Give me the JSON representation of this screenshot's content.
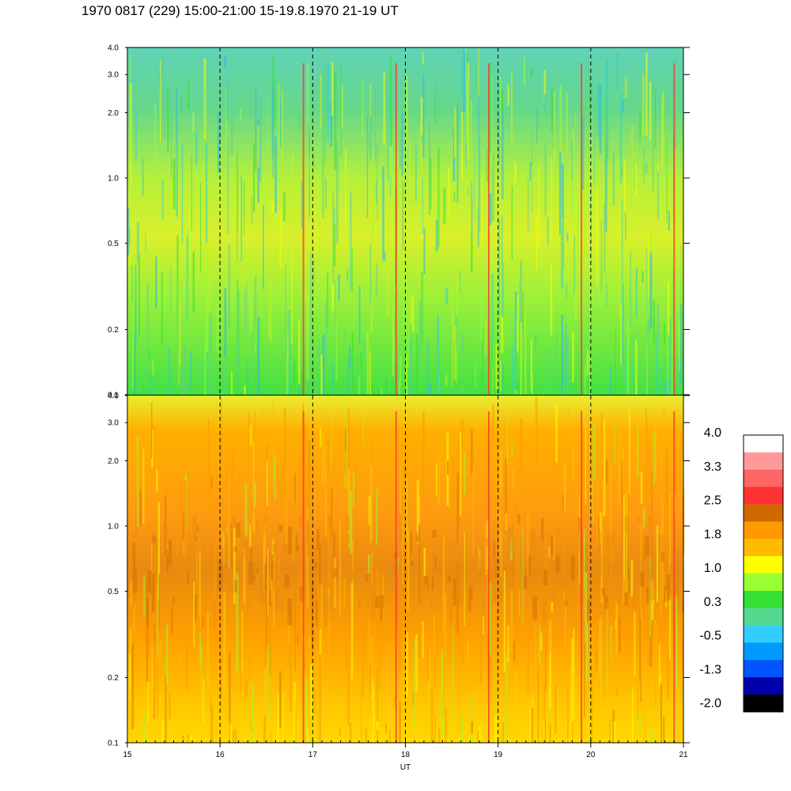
{
  "title": "1970 0817 (229) 15:00-21:00 15-19.8.1970  21-19 UT",
  "chart_data": [
    {
      "type": "heatmap",
      "panel": "top",
      "x_range": [
        15,
        21
      ],
      "y_scale": "log",
      "y_range": [
        0.1,
        4.0
      ],
      "y_ticks": [
        "0.1",
        "0.2",
        "0.5",
        "1.0",
        "2.0",
        "3.0",
        "4.0"
      ],
      "y_tick_values": [
        0.1,
        0.2,
        0.5,
        1.0,
        2.0,
        3.0,
        4.0
      ],
      "hour_markers": [
        16,
        17,
        18,
        19,
        20
      ],
      "dominant_levels": [
        "green",
        "yellow-green",
        "cyan"
      ]
    },
    {
      "type": "heatmap",
      "panel": "bottom",
      "x_range": [
        15,
        21
      ],
      "y_scale": "log",
      "y_range": [
        0.1,
        4.0
      ],
      "y_ticks": [
        "0.1",
        "0.2",
        "0.5",
        "1.0",
        "2.0",
        "3.0",
        "4.0"
      ],
      "y_tick_values": [
        0.1,
        0.2,
        0.5,
        1.0,
        2.0,
        3.0,
        4.0
      ],
      "hour_markers": [
        16,
        17,
        18,
        19,
        20
      ],
      "dominant_levels": [
        "orange",
        "yellow",
        "dark-orange"
      ]
    }
  ],
  "x_axis": {
    "ticks": [
      "15",
      "16",
      "17",
      "18",
      "19",
      "20",
      "21"
    ],
    "tick_values": [
      15,
      16,
      17,
      18,
      19,
      20,
      21
    ],
    "label": "UT"
  },
  "colorbar": {
    "labels": [
      "4.0",
      "3.3",
      "2.5",
      "1.8",
      "1.0",
      "0.3",
      "-0.5",
      "-1.3",
      "-2.0"
    ],
    "colors_top_to_bottom": [
      "#ffffff",
      "#ff9999",
      "#ff6666",
      "#ff3333",
      "#d06a00",
      "#ff9900",
      "#ffbb00",
      "#ffff00",
      "#99ff33",
      "#33e033",
      "#55d890",
      "#33ccff",
      "#0099ff",
      "#0055ff",
      "#0000aa",
      "#000000"
    ]
  },
  "palette": {
    "top_base": "#66dd55",
    "bottom_base": "#ffaa22",
    "marker_color": "#ff3333"
  }
}
